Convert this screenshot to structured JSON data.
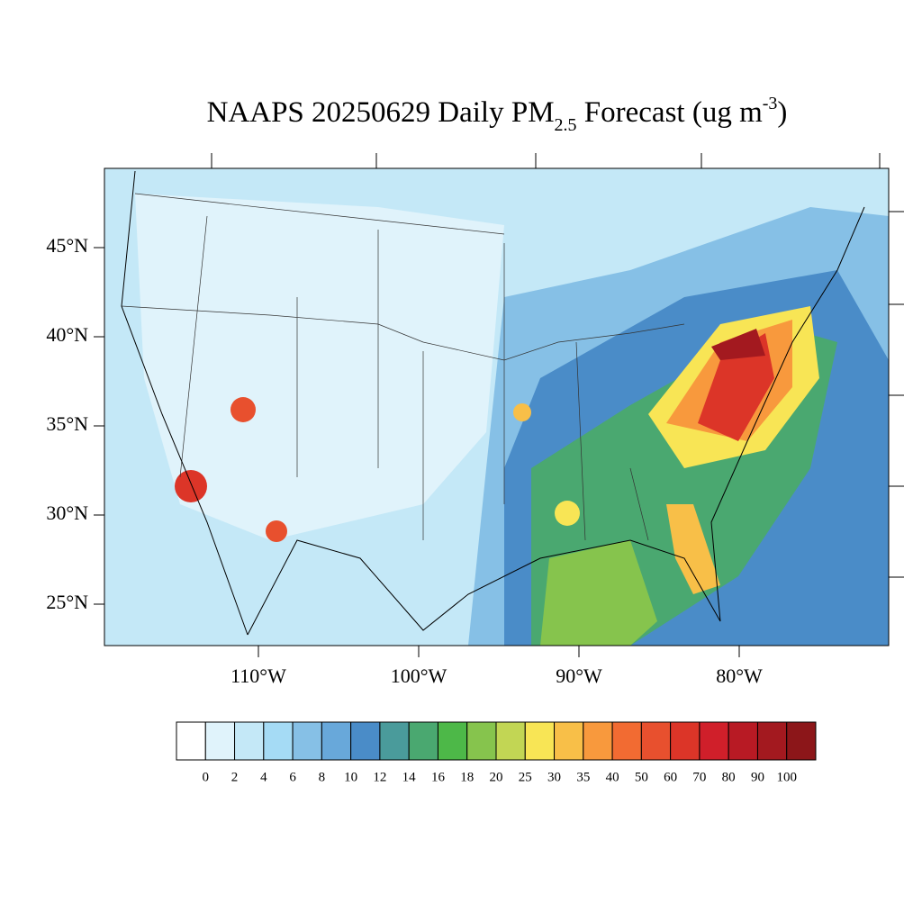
{
  "title": {
    "main": "NAAPS 20250629 Daily PM",
    "subscript": "2.5",
    "after": " Forecast (ug m",
    "superscript": "-3",
    "close": ")"
  },
  "lat_ticks": [
    {
      "value": 45,
      "label": "45°N"
    },
    {
      "value": 40,
      "label": "40°N"
    },
    {
      "value": 35,
      "label": "35°N"
    },
    {
      "value": 30,
      "label": "30°N"
    },
    {
      "value": 25,
      "label": "25°N"
    }
  ],
  "lon_ticks": [
    {
      "value": -110,
      "label": "110°W"
    },
    {
      "value": -100,
      "label": "100°W"
    },
    {
      "value": -90,
      "label": "90°W"
    },
    {
      "value": -80,
      "label": "80°W"
    }
  ],
  "colorbar": {
    "levels": [
      0,
      2,
      4,
      6,
      8,
      10,
      12,
      14,
      16,
      18,
      20,
      25,
      30,
      35,
      40,
      50,
      60,
      70,
      80,
      90,
      100
    ],
    "colors": [
      "#ffffff",
      "#e0f3fb",
      "#c4e8f7",
      "#a5dbf5",
      "#86c0e6",
      "#68a8da",
      "#4a8cc8",
      "#4a9b9b",
      "#4aa870",
      "#4db848",
      "#86c44d",
      "#c2d654",
      "#f8e555",
      "#f8bf48",
      "#f8993d",
      "#f26b32",
      "#e8502e",
      "#dc3528",
      "#d01f2a",
      "#b81a24",
      "#a3191f",
      "#8c1619"
    ]
  }
}
